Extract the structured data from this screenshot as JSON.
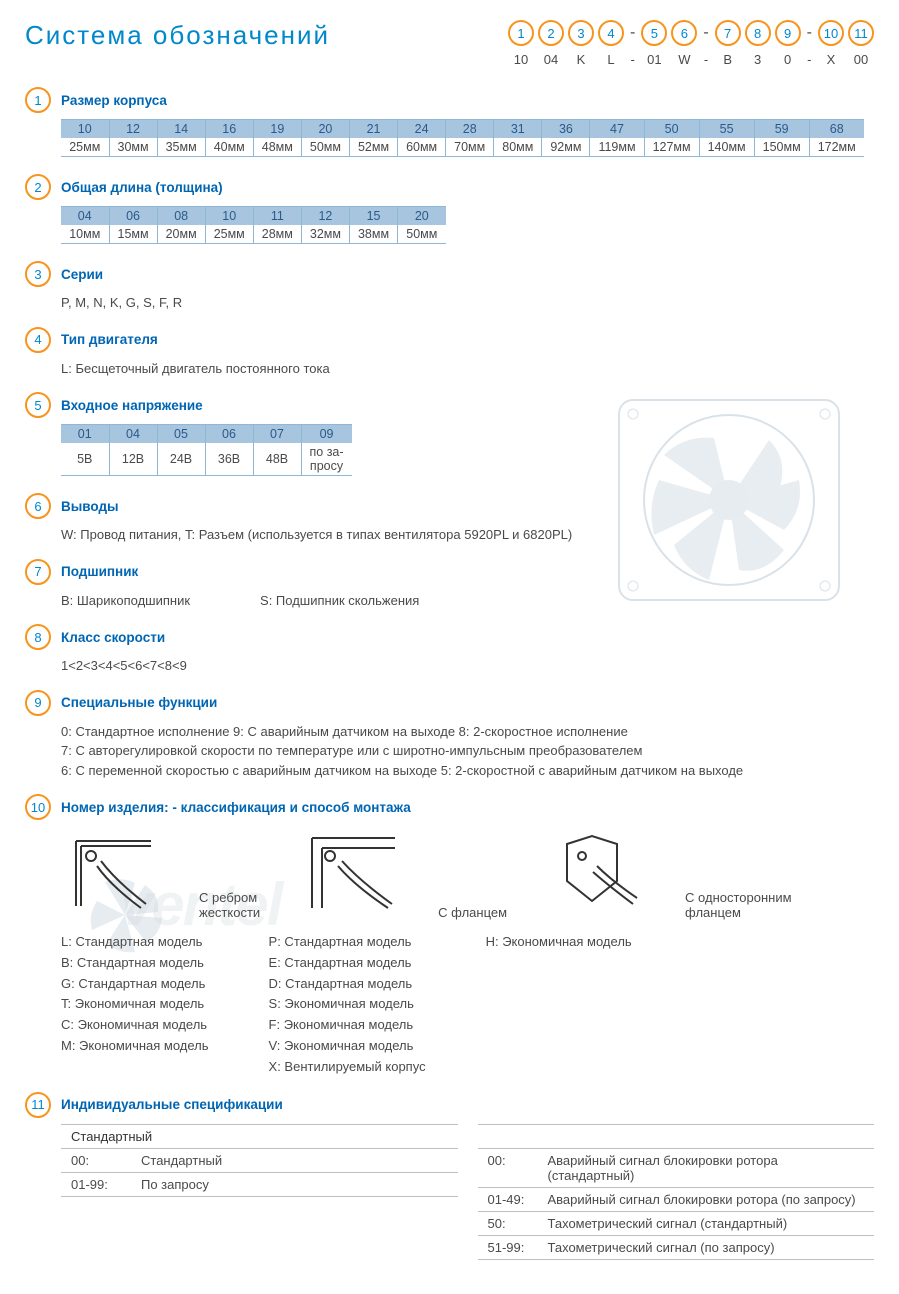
{
  "title": "Система обозначений",
  "colors": {
    "title": "#0088cc",
    "badge_border": "#f7941e",
    "badge_text": "#0088cc",
    "section_title": "#0066b3",
    "table_header_bg": "#a8c5e0",
    "table_header_text": "#2a5a8a",
    "table_border": "#8fb8d8",
    "body_text": "#4a4a4a",
    "spec_border": "#bfbfbf",
    "watermark": "#d0d8dd"
  },
  "code_badges": [
    {
      "num": "1",
      "label": "10"
    },
    {
      "num": "2",
      "label": "04"
    },
    {
      "num": "3",
      "label": "K"
    },
    {
      "num": "4",
      "label": "L",
      "sep_after": "-"
    },
    {
      "num": "5",
      "label": "01"
    },
    {
      "num": "6",
      "label": "W",
      "sep_after": "-"
    },
    {
      "num": "7",
      "label": "B"
    },
    {
      "num": "8",
      "label": "3"
    },
    {
      "num": "9",
      "label": "0",
      "sep_after": "-"
    },
    {
      "num": "10",
      "label": "X"
    },
    {
      "num": "11",
      "label": "00"
    }
  ],
  "sections": {
    "s1": {
      "num": "1",
      "title": "Размер корпуса",
      "table": {
        "header": [
          "10",
          "12",
          "14",
          "16",
          "19",
          "20",
          "21",
          "24",
          "28",
          "31",
          "36",
          "47",
          "50",
          "55",
          "59",
          "68"
        ],
        "row": [
          "25мм",
          "30мм",
          "35мм",
          "40мм",
          "48мм",
          "50мм",
          "52мм",
          "60мм",
          "70мм",
          "80мм",
          "92мм",
          "119мм",
          "127мм",
          "140мм",
          "150мм",
          "172мм"
        ]
      }
    },
    "s2": {
      "num": "2",
      "title": "Общая длина (толщина)",
      "table": {
        "header": [
          "04",
          "06",
          "08",
          "10",
          "11",
          "12",
          "15",
          "20"
        ],
        "row": [
          "10мм",
          "15мм",
          "20мм",
          "25мм",
          "28мм",
          "32мм",
          "38мм",
          "50мм"
        ]
      }
    },
    "s3": {
      "num": "3",
      "title": "Серии",
      "text": "P, M, N, K, G, S, F, R"
    },
    "s4": {
      "num": "4",
      "title": "Тип двигателя",
      "text": "L: Бесщеточный двигатель постоянного тока"
    },
    "s5": {
      "num": "5",
      "title": "Входное напряжение",
      "table": {
        "header": [
          "01",
          "04",
          "05",
          "06",
          "07",
          "09"
        ],
        "row": [
          "5В",
          "12В",
          "24В",
          "36В",
          "48В",
          "по за-\nпросу"
        ]
      }
    },
    "s6": {
      "num": "6",
      "title": "Выводы",
      "text": "W: Провод питания, T: Разъем (используется в типах вентилятора  5920PL и 6820PL)"
    },
    "s7": {
      "num": "7",
      "title": "Подшипник",
      "text_a": "B: Шарикоподшипник",
      "text_b": "S: Подшипник скольжения"
    },
    "s8": {
      "num": "8",
      "title": "Класс скорости",
      "text": "1<2<3<4<5<6<7<8<9"
    },
    "s9": {
      "num": "9",
      "title": "Специальные функции",
      "lines": [
        "0: Стандартное исполнение   9:  С аварийным датчиком на выходе   8: 2-скоростное исполнение",
        "7: С авторегулировкой скорости по температуре или с широтно-импульсным преобразователем",
        "6: С переменной скоростью с аварийным датчиком на выходе   5: 2-скоростной с аварийным датчиком на выходе"
      ]
    },
    "s10": {
      "num": "10",
      "title": "Номер изделия: - классификация  и способ монтажа",
      "mounts": [
        {
          "caption": "С ребром\nжесткости"
        },
        {
          "caption": "С фланцем"
        },
        {
          "caption": "С односторонним\nфланцем"
        }
      ],
      "model_cols": [
        [
          "L:  Стандартная модель",
          "B:  Стандартная модель",
          "G:  Стандартная модель",
          "T:  Экономичная модель",
          "C:  Экономичная модель",
          "M:  Экономичная модель"
        ],
        [
          "P:  Стандартная модель",
          "E:  Стандартная модель",
          "D:  Стандартная модель",
          "S:  Экономичная модель",
          "F:  Экономичная модель",
          "V:  Экономичная модель",
          "X:  Вентилируемый корпус"
        ],
        [
          "H:  Экономичная модель"
        ]
      ]
    },
    "s11": {
      "num": "11",
      "title": "Индивидуальные спецификации",
      "left": {
        "subhead": "Стандартный",
        "rows": [
          [
            "00:",
            "Стандартный"
          ],
          [
            "01-99:",
            "По запросу"
          ]
        ]
      },
      "right": {
        "rows": [
          [
            "00:",
            "Аварийный сигнал блокировки ротора (стандартный)"
          ],
          [
            "01-49:",
            "Аварийный сигнал блокировки ротора (по запросу)"
          ],
          [
            "50:",
            "Тахометрический сигнал (стандартный)"
          ],
          [
            "51-99:",
            "Тахометрический сигнал (по запросу)"
          ]
        ]
      }
    }
  },
  "watermark": "ventel"
}
